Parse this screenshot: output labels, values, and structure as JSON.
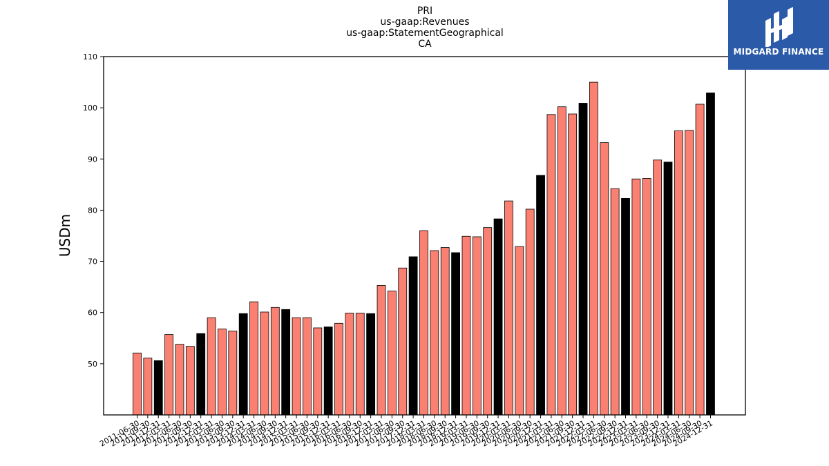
{
  "chart_data": {
    "type": "bar",
    "title_lines": [
      "PRI",
      "us-gaap:Revenues",
      "us-gaap:StatementGeographical",
      "CA"
    ],
    "ylabel": "USDm",
    "xlabel": "",
    "ylim": [
      40,
      110
    ],
    "yticks": [
      50,
      60,
      70,
      80,
      90,
      100,
      110
    ],
    "grid": false,
    "colors": {
      "quarter": "#fa8072",
      "year_end": "#000000",
      "edge": "#000000"
    },
    "categories": [
      "2011-06-30",
      "2011-09-30",
      "2011-12-31",
      "2012-03-31",
      "2012-06-30",
      "2012-09-30",
      "2012-12-31",
      "2013-03-31",
      "2013-06-30",
      "2013-09-30",
      "2013-12-31",
      "2014-03-31",
      "2014-06-30",
      "2014-09-30",
      "2014-12-31",
      "2015-03-31",
      "2015-06-30",
      "2015-09-30",
      "2015-12-31",
      "2016-03-31",
      "2016-06-30",
      "2016-09-30",
      "2016-12-31",
      "2017-03-31",
      "2017-06-30",
      "2017-09-30",
      "2017-12-31",
      "2018-03-31",
      "2018-06-30",
      "2018-09-30",
      "2018-12-31",
      "2019-03-31",
      "2019-06-30",
      "2019-09-30",
      "2019-12-31",
      "2020-03-31",
      "2020-06-30",
      "2020-09-30",
      "2020-12-31",
      "2021-03-31",
      "2021-06-30",
      "2021-09-30",
      "2021-12-31",
      "2022-03-31",
      "2022-06-30",
      "2022-09-30",
      "2022-12-31",
      "2023-03-31",
      "2023-06-30",
      "2023-09-30",
      "2023-12-31",
      "2024-03-31",
      "2024-06-30",
      "2024-09-30",
      "2024-12-31"
    ],
    "values": [
      52.1,
      51.1,
      50.6,
      55.7,
      53.8,
      53.4,
      55.9,
      59.0,
      56.8,
      56.4,
      59.8,
      62.1,
      60.1,
      61.0,
      60.6,
      59.0,
      59.0,
      57.0,
      57.2,
      57.9,
      59.9,
      59.9,
      59.8,
      65.3,
      64.2,
      68.7,
      70.9,
      76.0,
      72.1,
      72.7,
      71.7,
      74.9,
      74.8,
      76.6,
      78.3,
      81.8,
      72.9,
      80.2,
      86.8,
      98.7,
      100.2,
      98.8,
      100.9,
      105.0,
      93.2,
      84.2,
      82.3,
      86.1,
      86.2,
      89.8,
      89.4,
      95.5,
      95.6,
      100.7,
      102.9
    ]
  },
  "logo": {
    "text": "MIDGARD FINANCE"
  }
}
